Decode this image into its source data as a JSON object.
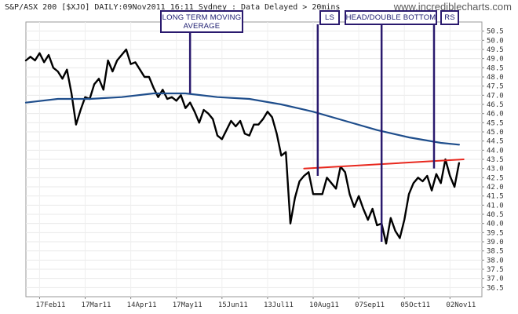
{
  "chart_data": {
    "type": "line",
    "title": "S&P/ASX 200 [$XJO] DAILY:09Nov2011 16:11 Sydney : Data Delayed > 20mins",
    "watermark": "www.incrediblecharts.com",
    "xlabel": "",
    "ylabel": "",
    "ylim": [
      36.0,
      51.0
    ],
    "y_ticks": [
      "36.5",
      "37.0",
      "37.5",
      "38.0",
      "38.5",
      "39.0",
      "39.5",
      "40.0",
      "40.5",
      "41.0",
      "41.5",
      "42.0",
      "42.5",
      "43.0",
      "43.5",
      "44.0",
      "44.5",
      "45.0",
      "45.5",
      "46.0",
      "46.5",
      "47.0",
      "47.5",
      "48.0",
      "48.5",
      "49.0",
      "49.5",
      "50.0",
      "50.5"
    ],
    "x_ticks": [
      "17Feb11",
      "17Mar11",
      "14Apr11",
      "17May11",
      "15Jun11",
      "13Jul11",
      "10Aug11",
      "07Sep11",
      "05Oct11",
      "02Nov11"
    ],
    "grid": true,
    "colors": {
      "price": "#000000",
      "moving_average": "#1f4e8c",
      "trendline": "#e8281e",
      "annotation": "#2a1a6e"
    },
    "series": [
      {
        "name": "",
        "role": "price",
        "x": [
          0,
          2,
          4,
          6,
          8,
          10,
          12,
          14,
          16,
          18,
          20,
          22,
          24,
          26,
          28,
          30,
          32,
          34,
          36,
          38,
          40,
          42,
          44,
          46,
          48,
          50,
          52,
          54,
          56,
          58,
          60,
          62,
          64,
          66,
          68,
          70,
          72,
          74,
          76,
          78,
          80,
          82,
          84,
          86,
          88,
          90,
          92,
          94,
          96,
          98,
          100,
          102,
          104,
          106,
          108,
          110,
          112,
          114,
          116,
          118,
          120,
          122,
          124,
          126,
          128,
          130,
          132,
          134,
          136,
          138,
          140,
          142,
          144,
          146,
          148,
          150,
          152,
          154,
          156,
          158,
          160,
          162,
          164,
          166,
          168,
          170,
          172,
          174,
          176,
          178,
          180,
          182,
          184,
          186,
          188,
          190
        ],
        "values": [
          48.9,
          49.1,
          48.9,
          49.3,
          48.8,
          49.2,
          48.5,
          48.3,
          47.9,
          48.4,
          47.1,
          45.4,
          46.2,
          46.9,
          46.8,
          47.6,
          47.9,
          47.3,
          48.9,
          48.3,
          48.9,
          49.2,
          49.5,
          48.7,
          48.8,
          48.4,
          48.0,
          48.0,
          47.4,
          46.9,
          47.3,
          46.8,
          46.9,
          46.7,
          47.0,
          46.3,
          46.6,
          46.1,
          45.5,
          46.2,
          46.0,
          45.7,
          44.8,
          44.6,
          45.1,
          45.6,
          45.3,
          45.6,
          44.9,
          44.8,
          45.4,
          45.4,
          45.7,
          46.1,
          45.8,
          44.9,
          43.7,
          43.9,
          40.0,
          41.4,
          42.3,
          42.6,
          42.8,
          41.6,
          41.6,
          41.6,
          42.5,
          42.2,
          41.9,
          43.1,
          42.8,
          41.6,
          40.9,
          41.5,
          40.8,
          40.2,
          40.8,
          39.9,
          40.0,
          38.9,
          40.3,
          39.6,
          39.2,
          40.2,
          41.6,
          42.2,
          42.5,
          42.3,
          42.6,
          41.8,
          42.7,
          42.2,
          43.5,
          42.6,
          42.0,
          43.3
        ]
      },
      {
        "name": "",
        "role": "moving_average",
        "x": [
          0,
          14,
          28,
          42,
          56,
          70,
          84,
          98,
          112,
          126,
          140,
          154,
          168,
          182,
          190
        ],
        "values": [
          46.6,
          46.8,
          46.8,
          46.9,
          47.1,
          47.1,
          46.9,
          46.8,
          46.5,
          46.1,
          45.6,
          45.1,
          44.7,
          44.4,
          44.3
        ]
      },
      {
        "name": "",
        "role": "trendline",
        "x": [
          122,
          192
        ],
        "values": [
          43.0,
          43.5
        ]
      }
    ],
    "annotations": [
      {
        "id": "ma",
        "lines": [
          "LONG TERM MOVING",
          "AVERAGE"
        ],
        "target_x": 72
      },
      {
        "id": "ls",
        "lines": [
          "LS"
        ],
        "target_x": 128
      },
      {
        "id": "head",
        "lines": [
          "HEAD/DOUBLE BOTTOM"
        ],
        "target_x": 156
      },
      {
        "id": "rs",
        "lines": [
          "RS"
        ],
        "target_x": 179
      }
    ]
  }
}
